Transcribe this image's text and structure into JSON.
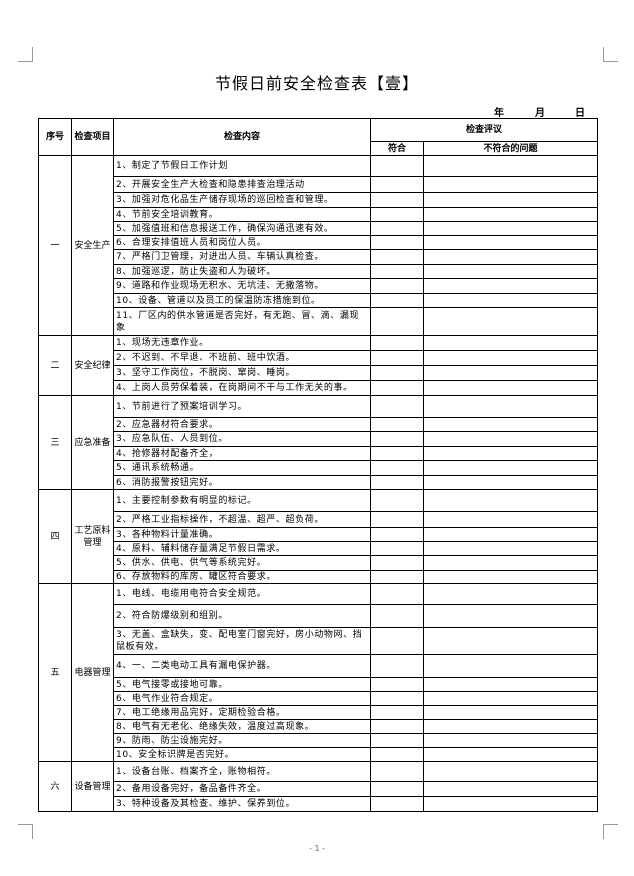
{
  "title": "节假日前安全检查表【壹】",
  "date": {
    "year": "年",
    "month": "月",
    "day": "日"
  },
  "headers": {
    "no": "序号",
    "item": "检查项目",
    "content": "检查内容",
    "eval": "检查评议",
    "pass": "符合",
    "issues": "不符合的问题"
  },
  "sections": [
    {
      "no": "一",
      "item": "安全生产",
      "rows": [
        "1、制定了节假日工作计划",
        "2、开展安全生产大检查和隐患排查治理活动",
        "3、加强对危化品生产储存现场的巡回检查和管理。",
        "4、节前安全培训教育。",
        "5、加强值班和信息报送工作，确保沟通迅速有效。",
        "6、合理安排值班人员和岗位人员。",
        "7、严格门卫管理，对进出人员、车辆认真检查。",
        "8、加强巡逻，防止失盗和人为破坏。",
        "9、道路和作业现场无积水、无坑洼、无撒落物。",
        "10、设备、管道以及员工的保温防冻措施到位。",
        "11、厂区内的供水管道是否完好，有无跑、冒、滴、漏现象"
      ]
    },
    {
      "no": "二",
      "item": "安全纪律",
      "rows": [
        "1、现场无违章作业。",
        "2、不迟到、不早退、不班前、班中饮酒。",
        "3、坚守工作岗位，不脱岗、窜岗、睡岗。",
        "4、上岗人员劳保着装，在岗期间不干与工作无关的事。"
      ]
    },
    {
      "no": "三",
      "item": "应急准备",
      "rows": [
        "1、节前进行了预案培训学习。",
        "2、应急器材符合要求。",
        "3、应急队伍、人员到位。",
        "4、抢修器材配备齐全，",
        "5、通讯系统畅通。",
        "6、消防报警按钮完好。"
      ]
    },
    {
      "no": "四",
      "item": "工艺原料管理",
      "rows": [
        "1、主要控制参数有明显的标记。",
        "2、严格工业指标操作，不超温、超严、超负荷。",
        "3、各种物料计量准确。",
        "4、原料、辅料储存量满足节假日需求。",
        "5、供水、供电、供气等系统完好。",
        "6、存放物料的库房、罐区符合要求。"
      ]
    },
    {
      "no": "五",
      "item": "电器管理",
      "rows": [
        "1、电线、电缆用电符合安全规范。",
        "2、符合防爆级别和组别。",
        "3、无盖、盒缺失，变、配电室门窗完好，房小动物网、挡鼠板有效。",
        "4、一、二类电动工具有漏电保护器。",
        "5、电气接零或接地可靠。",
        "6、电气作业符合规定。",
        "7、电工绝缘用品完好，定期检验合格。",
        "8、电气有无老化、绝缘失效，温度过高现象。",
        "9、防雨、防尘设施完好。",
        "10、安全标识牌是否完好。"
      ]
    },
    {
      "no": "六",
      "item": "设备管理",
      "rows": [
        "1、设备台账、档案齐全，账物相符。",
        "2、备用设备完好，备品备件齐全。",
        "3、特种设备及其检查、维护、保养到位。"
      ]
    }
  ],
  "footer": "- 1 -"
}
